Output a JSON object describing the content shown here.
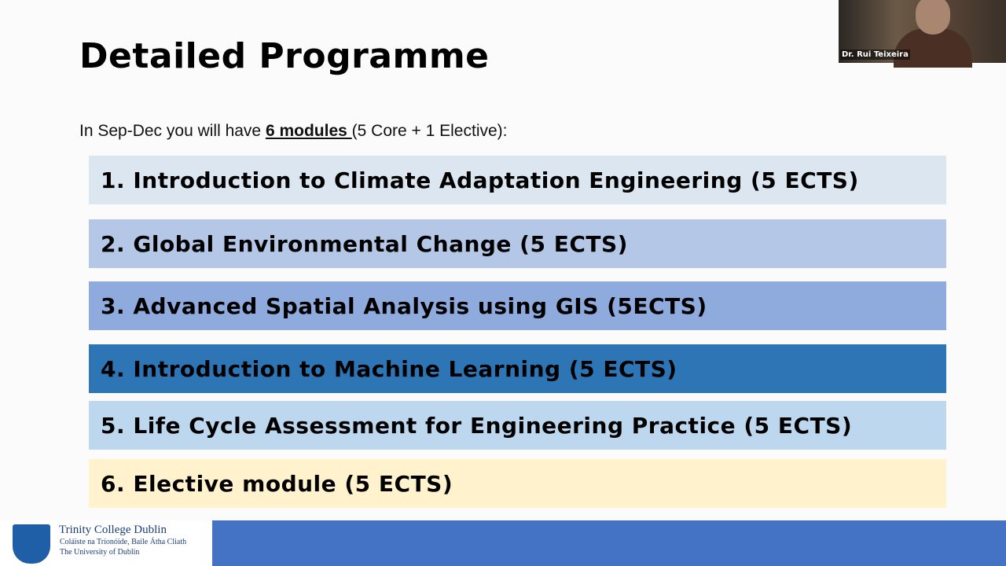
{
  "slide": {
    "title": "Detailed Programme",
    "intro": {
      "prefix": "In Sep-Dec you will have ",
      "emphasis": "6 modules ",
      "suffix": "(5 Core + 1 Elective):"
    },
    "modules": [
      "1. Introduction to Climate Adaptation Engineering (5 ECTS)",
      "2. Global Environmental Change (5 ECTS)",
      "3. Advanced Spatial Analysis using GIS (5ECTS)",
      "4. Introduction to Machine Learning (5 ECTS)",
      "5. Life Cycle Assessment for Engineering Practice (5 ECTS)",
      "6. Elective module (5 ECTS)"
    ]
  },
  "footer": {
    "name": "Trinity College Dublin",
    "irish": "Coláiste na Tríonóide, Baile Átha Cliath",
    "subtitle": "The University of Dublin"
  },
  "webcam": {
    "speaker": "Dr. Rui Teixeira"
  }
}
